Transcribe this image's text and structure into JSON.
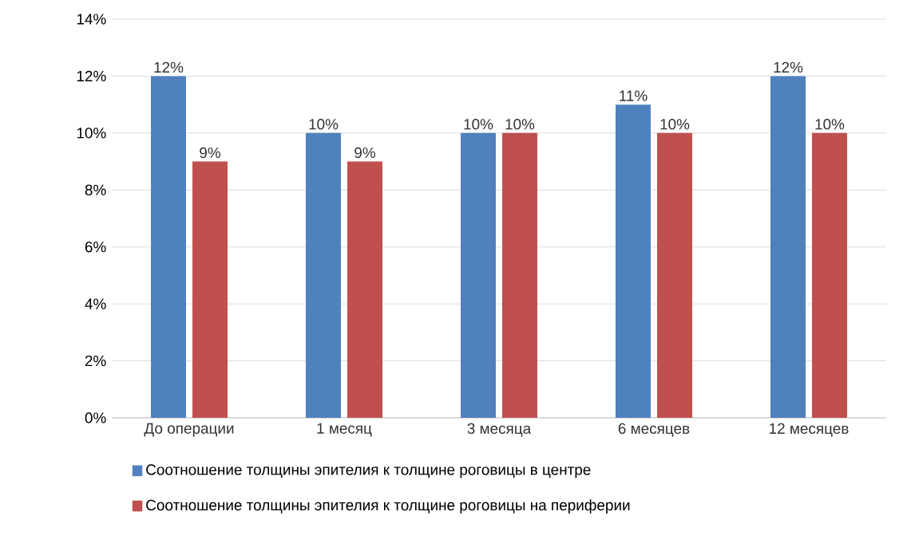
{
  "chart_data": {
    "type": "bar",
    "categories": [
      "До операции",
      "1 месяц",
      "3 месяца",
      "6 месяцев",
      "12 месяцев"
    ],
    "series": [
      {
        "name": "Соотношение толщины эпителия к толщине роговицы в центре",
        "color": "#4f81bd",
        "values": [
          12,
          10,
          10,
          11,
          12
        ],
        "value_labels": [
          "12%",
          "10%",
          "10%",
          "11%",
          "12%"
        ]
      },
      {
        "name": "Соотношение толщины эпителия к толщине роговицы на периферии",
        "color": "#c0504d",
        "values": [
          9,
          9,
          10,
          10,
          10
        ],
        "value_labels": [
          "9%",
          "9%",
          "10%",
          "10%",
          "10%"
        ]
      }
    ],
    "ylim": [
      0,
      14
    ],
    "yticks": [
      {
        "value": 0,
        "label": "0%"
      },
      {
        "value": 2,
        "label": "2%"
      },
      {
        "value": 4,
        "label": "4%"
      },
      {
        "value": 6,
        "label": "6%"
      },
      {
        "value": 8,
        "label": "8%"
      },
      {
        "value": 10,
        "label": "10%"
      },
      {
        "value": 12,
        "label": "12%"
      },
      {
        "value": 14,
        "label": "14%"
      }
    ],
    "grid": "y",
    "legend": "bottom"
  }
}
